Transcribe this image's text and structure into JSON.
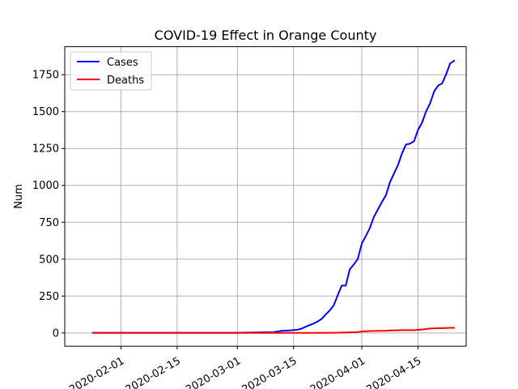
{
  "chart_data": {
    "type": "line",
    "title": "COVID-19 Effect in Orange County",
    "xlabel": "",
    "ylabel": "Num",
    "x_type": "date",
    "xlim": [
      "2020-01-18",
      "2020-04-27"
    ],
    "ylim": [
      -90,
      1940
    ],
    "xticks": [
      "2020-02-01",
      "2020-02-15",
      "2020-03-01",
      "2020-03-15",
      "2020-04-01",
      "2020-04-15"
    ],
    "yticks": [
      0,
      250,
      500,
      750,
      1000,
      1250,
      1500,
      1750
    ],
    "grid": true,
    "legend_position": "top-left",
    "series": [
      {
        "name": "Cases",
        "color": "#0000ff",
        "points": [
          [
            "2020-01-25",
            1
          ],
          [
            "2020-02-05",
            1
          ],
          [
            "2020-02-20",
            1
          ],
          [
            "2020-03-01",
            1
          ],
          [
            "2020-03-05",
            3
          ],
          [
            "2020-03-10",
            5
          ],
          [
            "2020-03-12",
            14
          ],
          [
            "2020-03-14",
            17
          ],
          [
            "2020-03-16",
            22
          ],
          [
            "2020-03-17",
            29
          ],
          [
            "2020-03-18",
            42
          ],
          [
            "2020-03-19",
            53
          ],
          [
            "2020-03-20",
            64
          ],
          [
            "2020-03-21",
            78
          ],
          [
            "2020-03-22",
            95
          ],
          [
            "2020-03-23",
            125
          ],
          [
            "2020-03-24",
            152
          ],
          [
            "2020-03-25",
            187
          ],
          [
            "2020-03-26",
            256
          ],
          [
            "2020-03-27",
            321
          ],
          [
            "2020-03-28",
            321
          ],
          [
            "2020-03-29",
            431
          ],
          [
            "2020-03-30",
            464
          ],
          [
            "2020-03-31",
            502
          ],
          [
            "2020-04-01",
            606
          ],
          [
            "2020-04-02",
            657
          ],
          [
            "2020-04-03",
            711
          ],
          [
            "2020-04-04",
            786
          ],
          [
            "2020-04-05",
            837
          ],
          [
            "2020-04-06",
            887
          ],
          [
            "2020-04-07",
            933
          ],
          [
            "2020-04-08",
            1021
          ],
          [
            "2020-04-09",
            1079
          ],
          [
            "2020-04-10",
            1138
          ],
          [
            "2020-04-11",
            1216
          ],
          [
            "2020-04-12",
            1277
          ],
          [
            "2020-04-13",
            1283
          ],
          [
            "2020-04-14",
            1299
          ],
          [
            "2020-04-15",
            1376
          ],
          [
            "2020-04-16",
            1425
          ],
          [
            "2020-04-17",
            1501
          ],
          [
            "2020-04-18",
            1556
          ],
          [
            "2020-04-19",
            1636
          ],
          [
            "2020-04-20",
            1676
          ],
          [
            "2020-04-21",
            1691
          ],
          [
            "2020-04-22",
            1753
          ],
          [
            "2020-04-23",
            1827
          ],
          [
            "2020-04-24",
            1845
          ]
        ]
      },
      {
        "name": "Deaths",
        "color": "#ff0000",
        "points": [
          [
            "2020-01-25",
            0
          ],
          [
            "2020-03-01",
            0
          ],
          [
            "2020-03-20",
            0
          ],
          [
            "2020-03-25",
            1
          ],
          [
            "2020-03-28",
            3
          ],
          [
            "2020-03-31",
            6
          ],
          [
            "2020-04-01",
            10
          ],
          [
            "2020-04-03",
            13
          ],
          [
            "2020-04-05",
            14
          ],
          [
            "2020-04-07",
            15
          ],
          [
            "2020-04-08",
            17
          ],
          [
            "2020-04-10",
            18
          ],
          [
            "2020-04-12",
            19
          ],
          [
            "2020-04-14",
            19
          ],
          [
            "2020-04-16",
            23
          ],
          [
            "2020-04-18",
            30
          ],
          [
            "2020-04-20",
            32
          ],
          [
            "2020-04-22",
            33
          ],
          [
            "2020-04-23",
            35
          ],
          [
            "2020-04-24",
            35
          ]
        ]
      }
    ]
  }
}
